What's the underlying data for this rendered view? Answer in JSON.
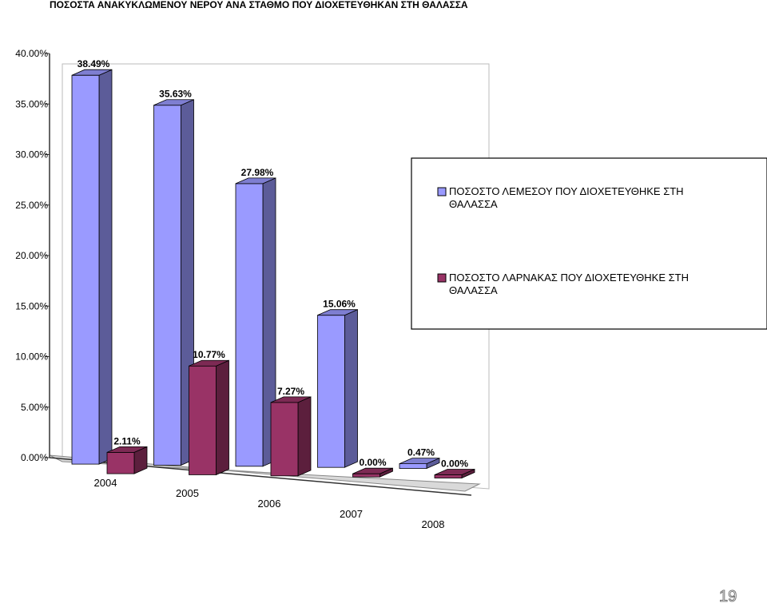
{
  "page_number": "19",
  "colors": {
    "limassol": "#9a9aff",
    "larnaca": "#993366"
  },
  "chart_data": {
    "type": "bar",
    "title": "ΠΟΣΟΣΤΑ ΑΝΑΚΥΚΛΩΜΕΝΟΥ ΝΕΡΟΥ ΑΝΑ ΣΤΑΘΜΟ ΠΟΥ ΔΙΟΧΕΤΕΥΘΗΚΑΝ ΣΤΗ ΘΑΛΑΣΣΑ",
    "categories": [
      "2004",
      "2005",
      "2006",
      "2007",
      "2008"
    ],
    "yticks": [
      "0.00%",
      "5.00%",
      "10.00%",
      "15.00%",
      "20.00%",
      "25.00%",
      "30.00%",
      "35.00%",
      "40.00%"
    ],
    "ylim": [
      0,
      40
    ],
    "series": [
      {
        "name": "ΠΟΣΟΣΤΟ ΛΕΜΕΣΟΥ ΠΟΥ ΔΙΟΧΕΤΕΥΘΗΚΕ ΣΤΗ ΘΑΛΑΣΣΑ",
        "name_lines": [
          "ΠΟΣΟΣΤΟ ΛΕΜΕΣΟΥ ΠΟΥ ΔΙΟΧΕΤΕΥΘΗΚΕ ΣΤΗ",
          "ΘΑΛΑΣΣΑ"
        ],
        "values": [
          38.49,
          35.63,
          27.98,
          15.06,
          0.47
        ],
        "labels": [
          "38.49%",
          "35.63%",
          "27.98%",
          "15.06%",
          "0.47%"
        ]
      },
      {
        "name": "ΠΟΣΟΣΤΟ ΛΑΡΝΑΚΑΣ ΠΟΥ ΔΙΟΧΕΤΕΥΘΗΚΕ ΣΤΗ ΘΑΛΑΣΣΑ",
        "name_lines": [
          "ΠΟΣΟΣΤΟ ΛΑΡΝΑΚΑΣ ΠΟΥ ΔΙΟΧΕΤΕΥΘΗΚΕ ΣΤΗ",
          "ΘΑΛΑΣΣΑ"
        ],
        "values": [
          2.11,
          10.77,
          7.27,
          0.0,
          0.0
        ],
        "labels": [
          "2.11%",
          "10.77%",
          "7.27%",
          "0.00%",
          "0.00%"
        ]
      }
    ],
    "grid": false,
    "legend": "right",
    "style": "3d-clustered-column"
  }
}
